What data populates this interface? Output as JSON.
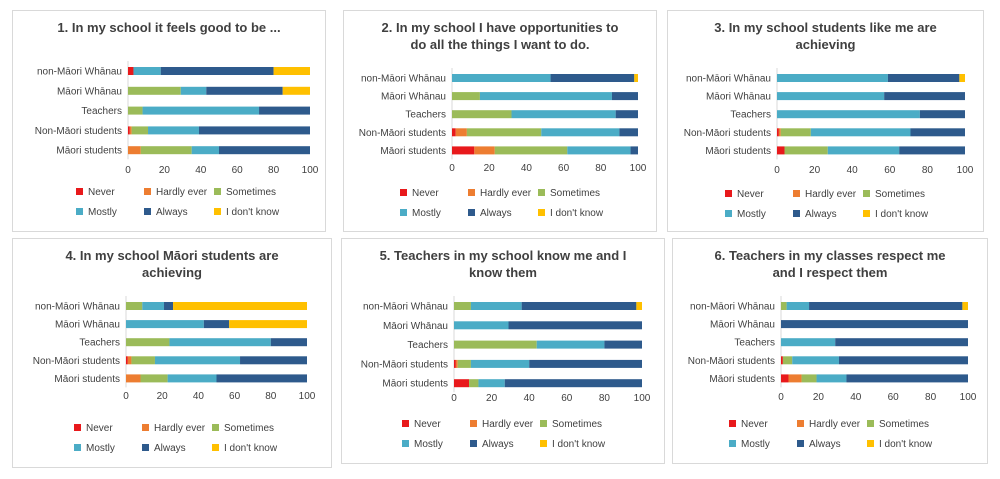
{
  "colors": {
    "Never": "#e8191b",
    "Hardly ever": "#ed7d31",
    "Sometimes": "#9bbb59",
    "Mostly": "#4bacc6",
    "Always": "#2e5a8c",
    "I don't know": "#ffc000"
  },
  "chart_data": [
    {
      "type": "bar",
      "orientation": "horizontal",
      "stacked": true,
      "title": "1. In my school it feels good to be ...",
      "categories": [
        "non-Māori Whānau",
        "Māori Whānau",
        "Teachers",
        "Non-Māori students",
        "Māori students"
      ],
      "xlim": [
        0,
        100
      ],
      "ticks": [
        0,
        20,
        40,
        60,
        80,
        100
      ],
      "legend": "bottom",
      "series": [
        {
          "name": "Never",
          "values": [
            3,
            0,
            0,
            1,
            0
          ]
        },
        {
          "name": "Hardly ever",
          "values": [
            0,
            0,
            0,
            1,
            7
          ]
        },
        {
          "name": "Sometimes",
          "values": [
            0,
            29,
            8,
            9,
            28
          ]
        },
        {
          "name": "Mostly",
          "values": [
            15,
            14,
            64,
            28,
            15
          ]
        },
        {
          "name": "Always",
          "values": [
            62,
            42,
            28,
            61,
            50
          ]
        },
        {
          "name": "I don't know",
          "values": [
            20,
            15,
            0,
            0,
            0
          ]
        }
      ]
    },
    {
      "type": "bar",
      "orientation": "horizontal",
      "stacked": true,
      "title": "2. In my school I have opportunities to do all the things I want to do.",
      "categories": [
        "non-Māori Whānau",
        "Māori Whānau",
        "Teachers",
        "Non-Māori students",
        "Māori students"
      ],
      "xlim": [
        0,
        100
      ],
      "ticks": [
        0,
        20,
        40,
        60,
        80,
        100
      ],
      "legend": "bottom",
      "series": [
        {
          "name": "Never",
          "values": [
            0,
            0,
            0,
            2,
            12
          ]
        },
        {
          "name": "Hardly ever",
          "values": [
            0,
            0,
            0,
            6,
            11
          ]
        },
        {
          "name": "Sometimes",
          "values": [
            0,
            15,
            32,
            40,
            39
          ]
        },
        {
          "name": "Mostly",
          "values": [
            53,
            71,
            56,
            42,
            34
          ]
        },
        {
          "name": "Always",
          "values": [
            45,
            14,
            12,
            10,
            4
          ]
        },
        {
          "name": "I don't know",
          "values": [
            2,
            0,
            0,
            0,
            0
          ]
        }
      ]
    },
    {
      "type": "bar",
      "orientation": "horizontal",
      "stacked": true,
      "title": "3. In my school students like me are achieving",
      "categories": [
        "non-Māori Whānau",
        "Māori Whānau",
        "Teachers",
        "Non-Māori students",
        "Māori students"
      ],
      "xlim": [
        0,
        100
      ],
      "ticks": [
        0,
        20,
        40,
        60,
        80,
        100
      ],
      "legend": "bottom",
      "series": [
        {
          "name": "Never",
          "values": [
            0,
            0,
            0,
            1,
            4
          ]
        },
        {
          "name": "Hardly ever",
          "values": [
            0,
            0,
            0,
            1,
            0
          ]
        },
        {
          "name": "Sometimes",
          "values": [
            0,
            0,
            0,
            16,
            23
          ]
        },
        {
          "name": "Mostly",
          "values": [
            59,
            57,
            76,
            53,
            38
          ]
        },
        {
          "name": "Always",
          "values": [
            38,
            43,
            24,
            29,
            35
          ]
        },
        {
          "name": "I don't know",
          "values": [
            3,
            0,
            0,
            0,
            0
          ]
        }
      ]
    },
    {
      "type": "bar",
      "orientation": "horizontal",
      "stacked": true,
      "title": "4. In my school Māori students are achieving",
      "categories": [
        "non-Māori Whānau",
        "Māori Whānau",
        "Teachers",
        "Non-Māori students",
        "Māori students"
      ],
      "xlim": [
        0,
        100
      ],
      "ticks": [
        0,
        20,
        40,
        60,
        80,
        100
      ],
      "legend": "bottom",
      "series": [
        {
          "name": "Never",
          "values": [
            0,
            0,
            0,
            1,
            0
          ]
        },
        {
          "name": "Hardly ever",
          "values": [
            0,
            0,
            0,
            2,
            8
          ]
        },
        {
          "name": "Sometimes",
          "values": [
            9,
            0,
            24,
            13,
            15
          ]
        },
        {
          "name": "Mostly",
          "values": [
            12,
            43,
            56,
            47,
            27
          ]
        },
        {
          "name": "Always",
          "values": [
            5,
            14,
            20,
            37,
            50
          ]
        },
        {
          "name": "I don't know",
          "values": [
            74,
            43,
            0,
            0,
            0
          ]
        }
      ]
    },
    {
      "type": "bar",
      "orientation": "horizontal",
      "stacked": true,
      "title": "5. Teachers in my school know me and I know them",
      "categories": [
        "non-Māori Whānau",
        "Māori Whānau",
        "Teachers",
        "Non-Māori students",
        "Māori students"
      ],
      "xlim": [
        0,
        100
      ],
      "ticks": [
        0,
        20,
        40,
        60,
        80,
        100
      ],
      "legend": "bottom",
      "series": [
        {
          "name": "Never",
          "values": [
            0,
            0,
            0,
            1,
            8
          ]
        },
        {
          "name": "Hardly ever",
          "values": [
            0,
            0,
            0,
            1,
            0
          ]
        },
        {
          "name": "Sometimes",
          "values": [
            9,
            0,
            44,
            7,
            5
          ]
        },
        {
          "name": "Mostly",
          "values": [
            27,
            29,
            36,
            31,
            14
          ]
        },
        {
          "name": "Always",
          "values": [
            61,
            71,
            20,
            60,
            73
          ]
        },
        {
          "name": "I don't know",
          "values": [
            3,
            0,
            0,
            0,
            0
          ]
        }
      ]
    },
    {
      "type": "bar",
      "orientation": "horizontal",
      "stacked": true,
      "title": "6. Teachers in my classes respect me and I respect them",
      "categories": [
        "non-Māori Whānau",
        "Māori Whānau",
        "Teachers",
        "Non-Māori students",
        "Māori students"
      ],
      "xlim": [
        0,
        100
      ],
      "ticks": [
        0,
        20,
        40,
        60,
        80,
        100
      ],
      "legend": "bottom",
      "series": [
        {
          "name": "Never",
          "values": [
            0,
            0,
            0,
            1,
            4
          ]
        },
        {
          "name": "Hardly ever",
          "values": [
            0,
            0,
            0,
            0,
            7
          ]
        },
        {
          "name": "Sometimes",
          "values": [
            3,
            0,
            0,
            5,
            8
          ]
        },
        {
          "name": "Mostly",
          "values": [
            12,
            0,
            29,
            25,
            16
          ]
        },
        {
          "name": "Always",
          "values": [
            82,
            100,
            71,
            69,
            65
          ]
        },
        {
          "name": "I don't know",
          "values": [
            3,
            0,
            0,
            0,
            0
          ]
        }
      ]
    }
  ]
}
